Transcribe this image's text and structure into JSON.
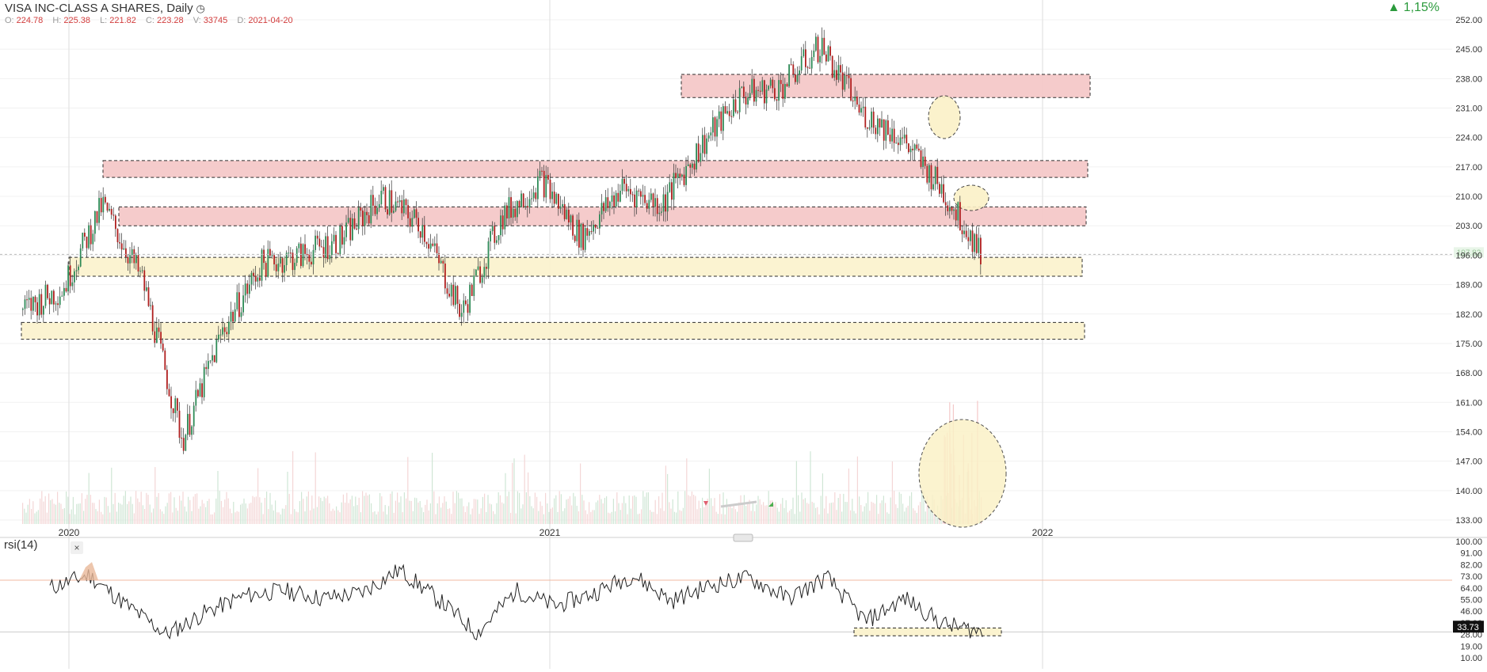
{
  "header": {
    "title": "VISA INC-CLASS A SHARES, Daily",
    "ohlc": [
      {
        "label": "O:",
        "value": "224.78"
      },
      {
        "label": "H:",
        "value": "225.38"
      },
      {
        "label": "L:",
        "value": "221.82"
      },
      {
        "label": "C:",
        "value": "223.28"
      },
      {
        "label": "V:",
        "value": "33745"
      },
      {
        "label": "D:",
        "value": "2021-04-20"
      }
    ],
    "change": "▲ 1,15%"
  },
  "price_axis_labels": [
    "252.00",
    "245.00",
    "238.00",
    "231.00",
    "224.00",
    "217.00",
    "210.00",
    "203.00",
    "196.00",
    "189.00",
    "182.00",
    "175.00",
    "168.00",
    "161.00",
    "154.00",
    "147.00",
    "140.00",
    "133.00"
  ],
  "last_price_label": "197.82",
  "x_axis_labels": [
    "2020",
    "2021",
    "2022"
  ],
  "rsi_panel": {
    "label": "rsi(14)",
    "close": "×",
    "axis_labels": [
      "100.00",
      "91.00",
      "82.00",
      "73.00",
      "64.00",
      "55.00",
      "46.00",
      "37.00",
      "28.00",
      "19.00",
      "10.00"
    ],
    "current_value": "33.73"
  },
  "colors": {
    "up": "#2e8b57",
    "down": "#b02020",
    "resistance_zone": "#f5c9c9",
    "support_zone": "#fbf3cf",
    "positive_change": "#2b9a3c"
  },
  "chart_data": [
    {
      "type": "candlestick",
      "title": "VISA INC-CLASS A SHARES, Daily",
      "ylim": [
        133,
        252
      ],
      "x_ticks": [
        "2020",
        "2021",
        "2022"
      ],
      "series": [
        {
          "name": "",
          "x": [
            "2019-11",
            "2019-12",
            "2020-01",
            "2020-02",
            "2020-03",
            "2020-04",
            "2020-05",
            "2020-06",
            "2020-07",
            "2020-08",
            "2020-09",
            "2020-10",
            "2020-11",
            "2020-12",
            "2021-01",
            "2021-02",
            "2021-03",
            "2021-04",
            "2021-05",
            "2021-06",
            "2021-07",
            "2021-08",
            "2021-09",
            "2021-10",
            "2021-11"
          ],
          "close": [
            183,
            188,
            208,
            190,
            152,
            178,
            194,
            196,
            200,
            210,
            203,
            182,
            205,
            214,
            200,
            212,
            208,
            222,
            234,
            236,
            246,
            230,
            224,
            212,
            197
          ]
        }
      ],
      "zones": [
        {
          "kind": "resistance",
          "y": [
            233.5,
            239
          ]
        },
        {
          "kind": "resistance",
          "y": [
            214.5,
            218.5
          ]
        },
        {
          "kind": "resistance",
          "y": [
            203,
            207.5
          ]
        },
        {
          "kind": "support",
          "y": [
            191,
            195.5
          ]
        },
        {
          "kind": "support",
          "y": [
            176,
            180
          ]
        }
      ]
    },
    {
      "type": "line",
      "title": "rsi(14)",
      "ylim": [
        10,
        100
      ],
      "series": [
        {
          "name": "",
          "values": [
            64,
            74,
            50,
            28,
            45,
            58,
            62,
            56,
            60,
            78,
            55,
            29,
            62,
            50,
            60,
            74,
            54,
            66,
            72,
            56,
            72,
            38,
            56,
            36,
            30
          ]
        }
      ]
    }
  ]
}
